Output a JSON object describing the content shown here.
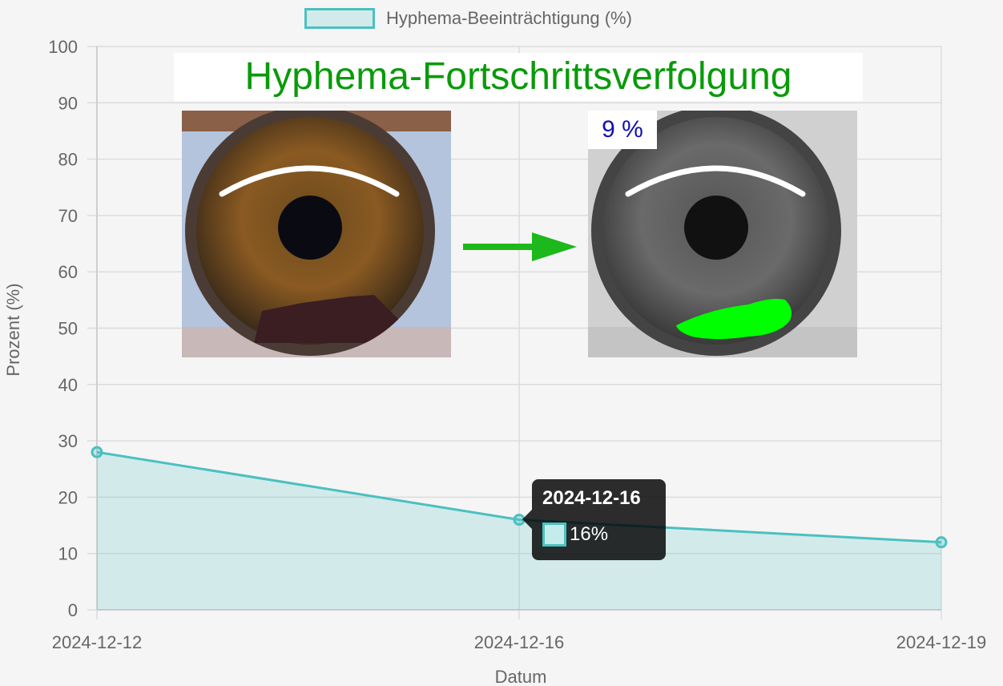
{
  "chart_data": {
    "type": "area",
    "categories": [
      "2024-12-12",
      "2024-12-16",
      "2024-12-19"
    ],
    "series": [
      {
        "name": "Hyphema-Beeinträchtigung (%)",
        "values": [
          28,
          16,
          12
        ]
      }
    ],
    "xlabel": "Datum",
    "ylabel": "Prozent (%)",
    "ylim": [
      0,
      100
    ],
    "yticks": [
      "0",
      "10",
      "20",
      "30",
      "40",
      "50",
      "60",
      "70",
      "80",
      "90",
      "100"
    ],
    "grid": true,
    "legend_position": "top",
    "colors": {
      "line": "#4bc0c0",
      "fill": "rgba(75,192,192,0.2)"
    }
  },
  "overlay": {
    "title": "Hyphema-Fortschrittsverfolgung",
    "result_percent": "9 %",
    "arrow_color": "#1cb81c",
    "highlight_color": "#00ff00"
  },
  "tooltip": {
    "title": "2024-12-16",
    "value": "16%"
  }
}
